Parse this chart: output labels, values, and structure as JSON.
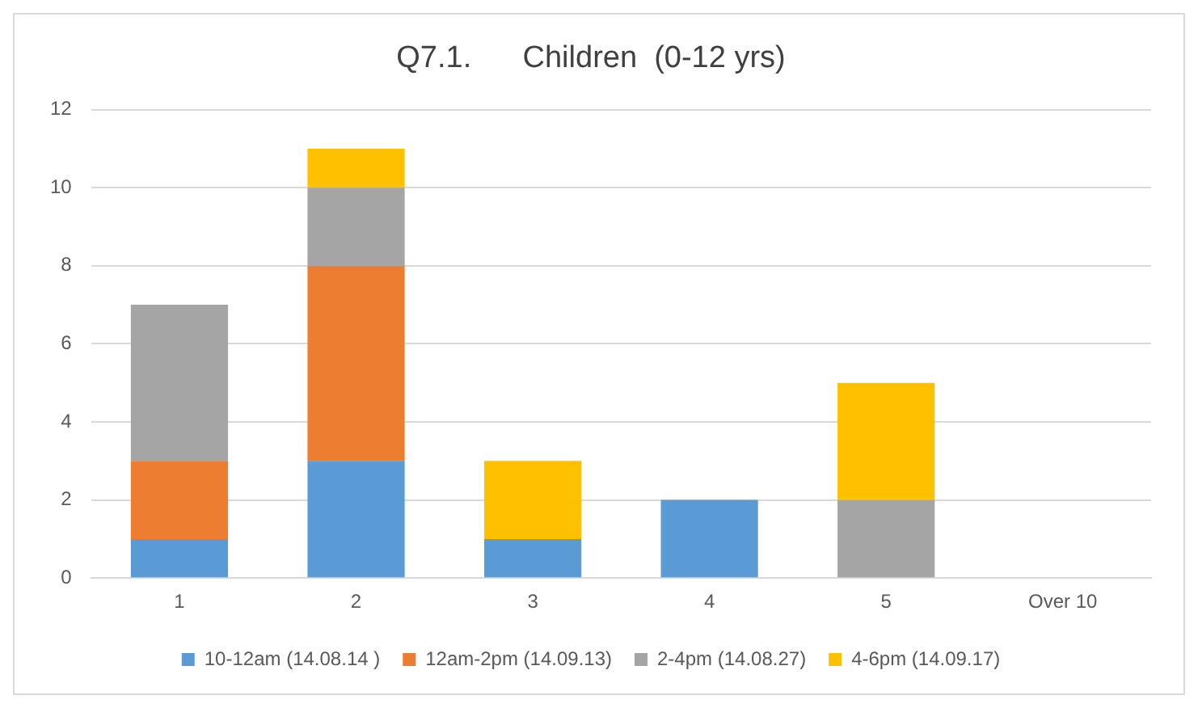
{
  "chart_data": {
    "type": "bar",
    "title": "Q7.1.      Children  (0-12 yrs)",
    "categories": [
      "1",
      "2",
      "3",
      "4",
      "5",
      "Over 10"
    ],
    "stacked": true,
    "series": [
      {
        "name": "10-12am (14.08.14 )",
        "color": "#5b9bd5",
        "values": [
          1,
          3,
          1,
          2,
          0,
          0
        ]
      },
      {
        "name": "12am-2pm (14.09.13)",
        "color": "#ed7d31",
        "values": [
          2,
          5,
          0,
          0,
          0,
          0
        ]
      },
      {
        "name": "2-4pm (14.08.27)",
        "color": "#a5a5a5",
        "values": [
          4,
          2,
          0,
          0,
          2,
          0
        ]
      },
      {
        "name": "4-6pm (14.09.17)",
        "color": "#ffc000",
        "values": [
          0,
          1,
          2,
          0,
          3,
          0
        ]
      }
    ],
    "ylim": [
      0,
      12
    ],
    "yticks": [
      0,
      2,
      4,
      6,
      8,
      10,
      12
    ],
    "grid": "y",
    "legend": "bottom"
  }
}
